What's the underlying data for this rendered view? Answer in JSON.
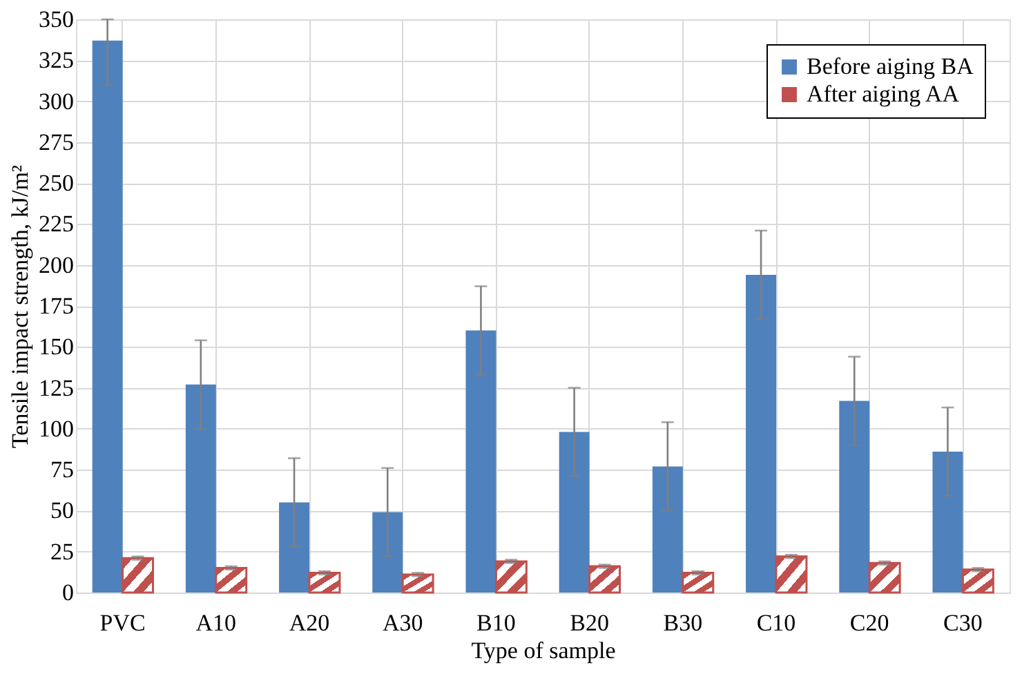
{
  "chart_data": {
    "type": "bar",
    "xlabel": "Type of sample",
    "ylabel": "Tensile impact strength, kJ/m²",
    "categories": [
      "PVC",
      "A10",
      "A20",
      "A30",
      "B10",
      "B20",
      "B30",
      "C10",
      "C20",
      "C30"
    ],
    "series": [
      {
        "name": "Before aiging BA",
        "color": "#4f81bd",
        "values": [
          337,
          127,
          55,
          49,
          160,
          98,
          77,
          194,
          117,
          86
        ],
        "errors": [
          [
            310,
            350
          ],
          27,
          27,
          27,
          27,
          27,
          27,
          27,
          27,
          27
        ]
      },
      {
        "name": "After aiging AA",
        "color": "#c0504d",
        "values": [
          21,
          15,
          12,
          11,
          19,
          16,
          12,
          22,
          18,
          14
        ],
        "errors": [
          1,
          1,
          1,
          1,
          1,
          1,
          1,
          1,
          1,
          1
        ]
      }
    ],
    "ylim": [
      0,
      350
    ],
    "yticks": [
      0,
      25,
      50,
      75,
      100,
      125,
      150,
      175,
      200,
      225,
      250,
      275,
      300,
      325,
      350
    ],
    "grid": true,
    "legend": "top right"
  }
}
